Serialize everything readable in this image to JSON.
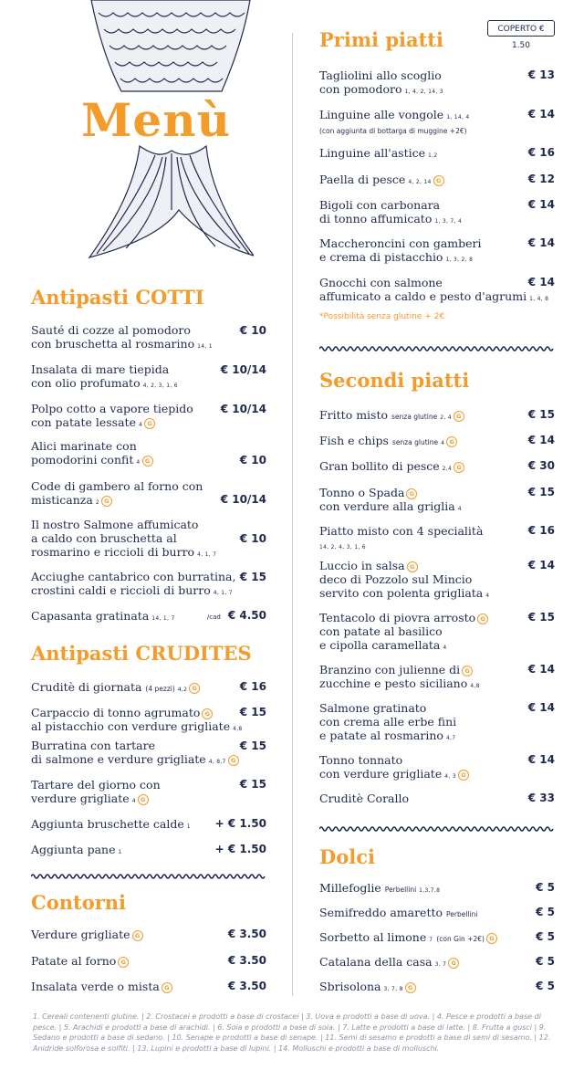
{
  "title": "Menù",
  "cover_charge": "COPERTO € 1.50",
  "gluten_free_icon": "gluten-free-icon",
  "colors": {
    "accent": "#f39b2b",
    "text": "#1f2a4d",
    "footnote": "#8f93a0"
  },
  "antipasti_cotti": {
    "title": "Antipasti COTTI",
    "items": [
      {
        "line1": "Sauté di cozze al pomodoro",
        "line2": "con bruschetta al rosmarino",
        "allergens": "14, 1",
        "price": "€ 10"
      },
      {
        "line1": "Insalata di mare tiepida",
        "line2": "con olio profumato",
        "allergens": "4, 2, 3, 1, 6",
        "price": "€ 10/14"
      },
      {
        "line1": "Polpo cotto a vapore tiepido",
        "line2": "con patate lessate",
        "allergens": "4",
        "price": "€ 10/14"
      },
      {
        "line1": "Alici marinate con",
        "line2": "pomodorini confit",
        "allergens": "4",
        "price": "€ 10"
      },
      {
        "line1": "Code di gambero al forno con",
        "line2": "misticanza",
        "allergens": "2",
        "price": "€ 10/14"
      },
      {
        "line1": "Il nostro Salmone affumicato",
        "line2": "a caldo con bruschetta al",
        "line3": "rosmarino e riccioli di burro",
        "allergens": "4, 1, 7",
        "price": "€ 10"
      },
      {
        "line1": "Acciughe cantabrico con burratina,",
        "line2": "crostini caldi e riccioli di burro",
        "allergens": "4, 1, 7",
        "price": "€ 15"
      },
      {
        "line1": "Capasanta gratinata",
        "allergens": "14, 1, 7",
        "unit": "/cad",
        "price": "€ 4.50"
      }
    ]
  },
  "antipasti_crudites": {
    "title": "Antipasti CRUDITES",
    "items": [
      {
        "line1": "Cruditè di giornata",
        "extra": "(4 pezzi)",
        "allergens": "4,2",
        "price": "€ 16"
      },
      {
        "line1": "Carpaccio di tonno agrumato",
        "line2": "al pistacchio con verdure grigliate",
        "allergens": "4,8",
        "price": "€ 15"
      },
      {
        "line1": "Burratina con tartare",
        "line2": "di salmone e verdure grigliate",
        "allergens": "4, 8,7",
        "price": "€ 15"
      },
      {
        "line1": "Tartare del giorno con",
        "line2": "verdure grigliate",
        "allergens": "4",
        "price": "€ 15"
      },
      {
        "line1": "Aggiunta bruschette calde",
        "allergens": "1",
        "price": "+ € 1.50"
      },
      {
        "line1": "Aggiunta pane",
        "allergens": "1",
        "price": "+ € 1.50"
      }
    ]
  },
  "contorni": {
    "title": "Contorni",
    "items": [
      {
        "line1": "Verdure grigliate",
        "price": "€ 3.50"
      },
      {
        "line1": "Patate al forno",
        "price": "€ 3.50"
      },
      {
        "line1": "Insalata verde o mista",
        "price": "€ 3.50"
      }
    ]
  },
  "primi_piatti": {
    "title": "Primi piatti",
    "items": [
      {
        "line1": "Tagliolini allo scoglio",
        "line2": "con pomodoro",
        "allergens": "1, 4, 2, 14, 3",
        "price": "€ 13"
      },
      {
        "line1": "Linguine alle vongole",
        "allergens": "1, 14, 4",
        "line2": "(con aggiunta di bottarga di muggine +2€)",
        "price": "€ 14"
      },
      {
        "line1": "Linguine all'astice",
        "allergens": "1,2",
        "price": "€ 16"
      },
      {
        "line1": "Paella di pesce",
        "allergens": "4, 2, 14",
        "price": "€ 12"
      },
      {
        "line1": "Bigoli con carbonara",
        "line2": "di tonno affumicato",
        "allergens": "1, 3, 7, 4",
        "price": "€ 14"
      },
      {
        "line1": "Maccheroncini con gamberi",
        "line2": "e crema di pistacchio",
        "allergens": "1, 3, 2, 8",
        "price": "€ 14"
      },
      {
        "line1": "Gnocchi con salmone",
        "line2": "affumicato a caldo e pesto d'agrumi",
        "allergens": "1, 4, 8",
        "price": "€ 14"
      }
    ],
    "note": "*Possibilità senza glutine + 2€"
  },
  "secondi_piatti": {
    "title": "Secondi piatti",
    "items": [
      {
        "line1": "Fritto misto",
        "extra": "senza glutine",
        "allergens": "2, 4",
        "price": "€ 15"
      },
      {
        "line1": "Fish e chips",
        "extra": "senza glutine",
        "allergens": "4",
        "price": "€ 14"
      },
      {
        "line1": "Gran bollito di pesce",
        "allergens": "2,4",
        "price": "€ 30"
      },
      {
        "line1": "Tonno o Spada",
        "line2": "con verdure alla griglia",
        "allergens": "4",
        "price": "€ 15"
      },
      {
        "line1": "Piatto misto con 4 specialità",
        "allergens": "14, 2, 4, 3, 1, 6",
        "price": "€ 16"
      },
      {
        "line1": "Luccio in salsa",
        "line2": "deco di Pozzolo sul Mincio",
        "line3": "servito con polenta grigliata",
        "allergens": "4",
        "price": "€ 14"
      },
      {
        "line1": "Tentacolo di piovra arrosto",
        "line2": "con patate al basilico",
        "line3": "e cipolla caramellata",
        "allergens": "4",
        "price": "€ 15"
      },
      {
        "line1": "Branzino con julienne di",
        "line2": "zucchine e pesto siciliano",
        "allergens": "4,8",
        "price": "€ 14"
      },
      {
        "line1": "Salmone gratinato",
        "line2": "con crema alle erbe fini",
        "line3": "e patate al rosmarino",
        "allergens": "4,7",
        "price": "€ 14"
      },
      {
        "line1": "Tonno tonnato",
        "line2": "con verdure grigliate",
        "allergens": "4, 3",
        "price": "€ 14"
      },
      {
        "line1": "Cruditè Corallo",
        "price": "€ 33"
      }
    ]
  },
  "dolci": {
    "title": "Dolci",
    "items": [
      {
        "line1": "Millefoglie",
        "extra": "Perbellini",
        "allergens": "1,3,7,8",
        "price": "€ 5"
      },
      {
        "line1": "Semifreddo amaretto",
        "extra": "Perbellini",
        "price": "€ 5"
      },
      {
        "line1": "Sorbetto al limone",
        "allergens": "7",
        "extra": "(con Gin +2€)",
        "price": "€ 5"
      },
      {
        "line1": "Catalana della casa",
        "allergens": "3, 7",
        "price": "€ 5"
      },
      {
        "line1": "Sbrisolona",
        "allergens": "3, 7, 8",
        "price": "€ 5"
      }
    ]
  },
  "footnote": "1. Cereali contenenti glutine. | 2. Crostacei e prodotti a base di crostacei | 3. Uova e prodotti a base di uova. | 4. Pesce e prodotti a base di pesce. | 5. Arachidi e prodotti a base di arachidi. | 6. Soia e prodotti a base di soia. | 7. Latte e prodotti a base di latte. | 8. Frutta a gusci | 9. Sedano e prodotti a base di sedano. | 10. Senape e prodotti a base di senape. | 11. Semi di sesamo e prodotti a base di semi di sesamo. | 12. Anidride solforosa e solfiti. | 13. Lupini e prodotti a base di lupini. | 14. Molluschi e prodotti a base di molluschi."
}
